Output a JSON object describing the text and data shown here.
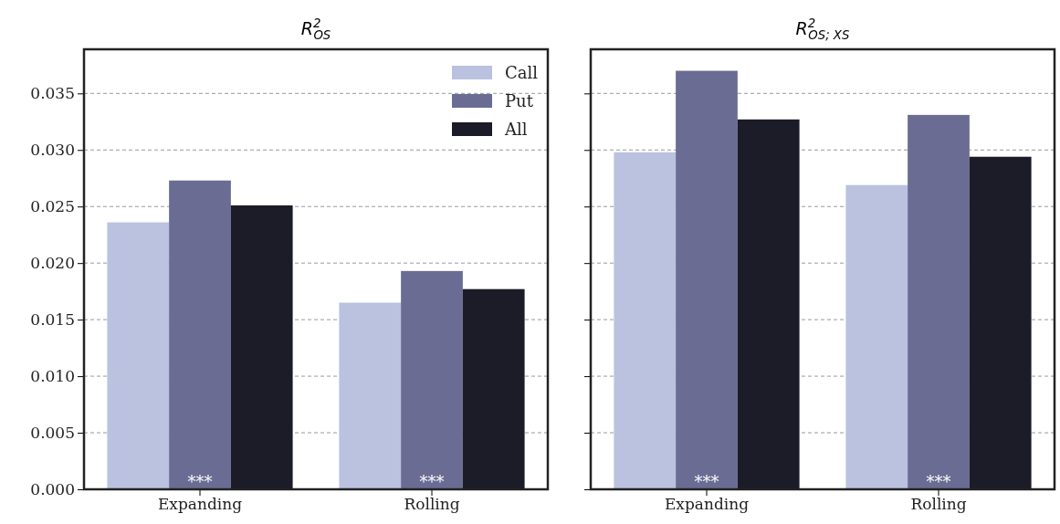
{
  "chart_data": [
    {
      "type": "bar",
      "title": "R$^{2}$$_{OS}$",
      "categories": [
        "Expanding",
        "Rolling"
      ],
      "series": [
        {
          "name": "Call",
          "color": "#bac2df",
          "values": [
            0.0236,
            0.0165
          ]
        },
        {
          "name": "Put",
          "color": "#6a6c93",
          "values": [
            0.0273,
            0.0193
          ]
        },
        {
          "name": "All",
          "color": "#1c1b28",
          "values": [
            0.0251,
            0.0177
          ]
        }
      ],
      "ylim": [
        0,
        0.0389
      ],
      "yticks": [
        {
          "value": 0,
          "label": "0.000"
        },
        {
          "value": 0.005,
          "label": "0.005"
        },
        {
          "value": 0.01,
          "label": "0.010"
        },
        {
          "value": 0.015,
          "label": "0.015"
        },
        {
          "value": 0.02,
          "label": "0.020"
        },
        {
          "value": 0.025,
          "label": "0.025"
        },
        {
          "value": 0.03,
          "label": "0.030"
        },
        {
          "value": 0.035,
          "label": "0.035"
        }
      ],
      "grid": "y",
      "legend": "top right",
      "annotations": [
        {
          "text": "***",
          "x": "Expanding",
          "y": 0
        },
        {
          "text": "***",
          "x": "Rolling",
          "y": 0
        }
      ]
    },
    {
      "type": "bar",
      "title": "R$^{2}$$_{OS; XS}$",
      "categories": [
        "Expanding",
        "Rolling"
      ],
      "series": [
        {
          "color": "#bac2df",
          "values": [
            0.0298,
            0.0269
          ]
        },
        {
          "color": "#6a6c93",
          "values": [
            0.037,
            0.0331
          ]
        },
        {
          "color": "#1c1b28",
          "values": [
            0.0327,
            0.0294
          ]
        }
      ],
      "ylim": [
        0,
        0.0389
      ],
      "yticks": [
        {
          "value": 0,
          "label": null
        },
        {
          "value": 0.005,
          "label": null
        },
        {
          "value": 0.01,
          "label": null
        },
        {
          "value": 0.015,
          "label": null
        },
        {
          "value": 0.02,
          "label": null
        },
        {
          "value": 0.025,
          "label": null
        },
        {
          "value": 0.03,
          "label": null
        },
        {
          "value": 0.035,
          "label": null
        }
      ],
      "grid": "y",
      "tick_labels": "x",
      "annotations": [
        {
          "text": "***",
          "x": "Expanding",
          "y": 0
        },
        {
          "text": "***",
          "x": "Rolling",
          "y": 0
        }
      ]
    }
  ]
}
